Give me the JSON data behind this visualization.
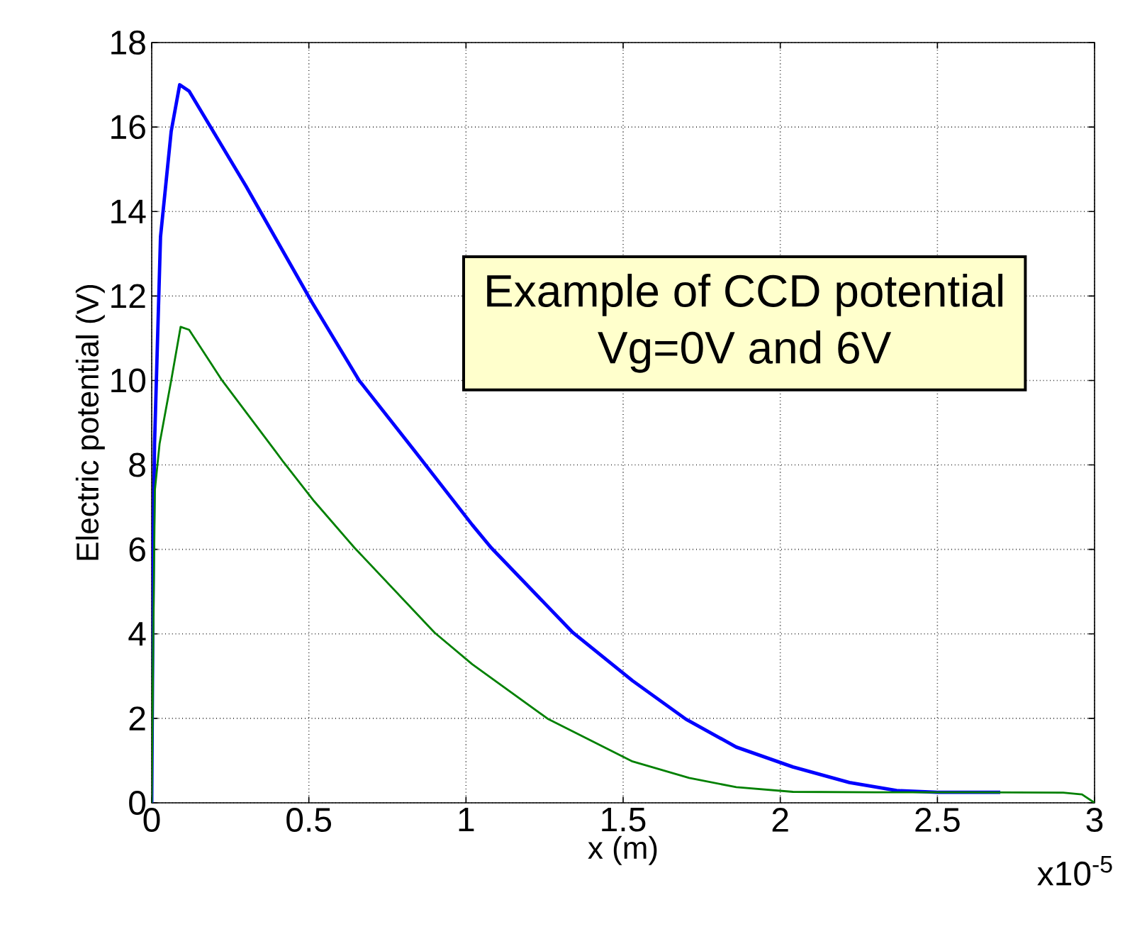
{
  "chart_data": {
    "type": "line",
    "xlabel": "x (m)",
    "ylabel": "Electric potential (V)",
    "annotations": [
      "Example of CCD potential",
      "Vg=0V and 6V",
      "x10$^{-5}$"
    ],
    "xlim": [
      0,
      3
    ],
    "ylim": [
      0,
      18
    ],
    "xticks": [
      0,
      {
        "value": 0.5,
        "label": "0.5"
      },
      1,
      {
        "value": 1.5,
        "label": "1.5"
      },
      2,
      {
        "value": 2.5,
        "label": "2.5"
      },
      3
    ],
    "yticks": [
      0,
      2,
      4,
      6,
      8,
      10,
      12,
      14,
      16,
      18
    ],
    "grid": true,
    "series": [
      {
        "color": "#0000ff",
        "x": [
          0,
          0.005,
          0.009,
          0.028,
          0.062,
          0.089,
          0.119,
          0.3,
          0.51,
          0.66,
          0.84,
          1.02,
          1.08,
          1.34,
          1.53,
          1.7,
          1.86,
          2.04,
          2.22,
          2.37,
          2.5,
          2.7
        ],
        "values": [
          0,
          6,
          8.5,
          13.4,
          15.9,
          17.0,
          16.85,
          14.6,
          11.85,
          10.0,
          8.3,
          6.58,
          6.04,
          4.03,
          2.89,
          1.98,
          1.32,
          0.85,
          0.48,
          0.29,
          0.25,
          0.25
        ]
      },
      {
        "color": "#008000",
        "x": [
          0,
          0.005,
          0.01,
          0.025,
          0.062,
          0.092,
          0.119,
          0.224,
          0.396,
          0.42,
          0.517,
          0.645,
          0.9,
          1.02,
          1.26,
          1.53,
          1.71,
          1.86,
          2.04,
          2.3,
          2.6,
          2.9,
          2.96,
          3.0
        ],
        "values": [
          0,
          4,
          7.4,
          8.5,
          10.0,
          11.27,
          11.2,
          10.0,
          8.3,
          8.06,
          7.14,
          6.04,
          4.03,
          3.28,
          1.99,
          0.98,
          0.59,
          0.37,
          0.26,
          0.25,
          0.25,
          0.24,
          0.2,
          0
        ]
      }
    ]
  }
}
